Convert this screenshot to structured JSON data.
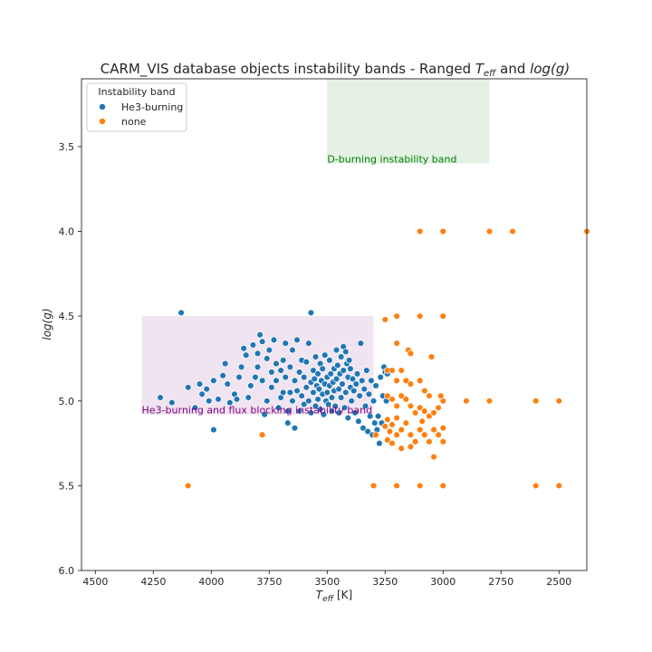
{
  "chart_data": {
    "type": "scatter",
    "title_prefix": "CARM_VIS database objects instability bands - Ranged ",
    "title_teff_main": "T",
    "title_teff_sub": "eff",
    "title_and": " and ",
    "title_logg": "log(g)",
    "xlabel_main": "T",
    "xlabel_sub": "eff",
    "xlabel_unit": " [K]",
    "ylabel": "log(g)",
    "xlim": [
      4560,
      2380
    ],
    "ylim": [
      6.0,
      3.1
    ],
    "x_ticks": [
      4500,
      4250,
      4000,
      3750,
      3500,
      3250,
      3000,
      2750,
      2500
    ],
    "y_ticks": [
      3.5,
      4.0,
      4.5,
      5.0,
      5.5,
      6.0
    ],
    "grid": false,
    "legend": {
      "title": "Instability band",
      "placement": "upper-left",
      "entries": [
        {
          "label": "He3-burning",
          "color": "#1f77b4"
        },
        {
          "label": "none",
          "color": "#ff7f0e"
        }
      ]
    },
    "bands": [
      {
        "label": "D-burning instability band",
        "teff": [
          3500,
          2800
        ],
        "logg": [
          3.1,
          3.6
        ],
        "fill": "#e4f1e4",
        "text_color": "#008000"
      },
      {
        "label": "He3-burning and flux blocking instability band",
        "teff": [
          4300,
          3300
        ],
        "logg": [
          4.5,
          5.08
        ],
        "fill": "#f1e4f1",
        "text_color": "#800080"
      }
    ],
    "series": [
      {
        "name": "He3-burning",
        "color": "#1f77b4",
        "points": [
          [
            4130,
            4.48
          ],
          [
            3570,
            4.48
          ],
          [
            4220,
            4.98
          ],
          [
            4170,
            5.01
          ],
          [
            4100,
            4.92
          ],
          [
            4070,
            5.04
          ],
          [
            4050,
            4.9
          ],
          [
            4040,
            4.96
          ],
          [
            4020,
            4.93
          ],
          [
            4010,
            5.0
          ],
          [
            3990,
            4.88
          ],
          [
            3990,
            5.17
          ],
          [
            3970,
            4.99
          ],
          [
            3950,
            4.85
          ],
          [
            3940,
            4.78
          ],
          [
            3930,
            4.9
          ],
          [
            3920,
            5.01
          ],
          [
            3900,
            4.96
          ],
          [
            3890,
            4.99
          ],
          [
            3880,
            4.86
          ],
          [
            3870,
            4.8
          ],
          [
            3860,
            4.69
          ],
          [
            3850,
            4.73
          ],
          [
            3840,
            4.98
          ],
          [
            3830,
            4.91
          ],
          [
            3820,
            4.67
          ],
          [
            3810,
            4.86
          ],
          [
            3800,
            4.8
          ],
          [
            3800,
            4.72
          ],
          [
            3790,
            4.61
          ],
          [
            3780,
            4.65
          ],
          [
            3780,
            4.88
          ],
          [
            3770,
            5.08
          ],
          [
            3760,
            5.0
          ],
          [
            3760,
            4.75
          ],
          [
            3750,
            4.7
          ],
          [
            3740,
            4.83
          ],
          [
            3740,
            4.92
          ],
          [
            3730,
            4.64
          ],
          [
            3720,
            4.78
          ],
          [
            3720,
            4.88
          ],
          [
            3710,
            5.04
          ],
          [
            3700,
            4.98
          ],
          [
            3700,
            4.82
          ],
          [
            3690,
            4.95
          ],
          [
            3690,
            4.76
          ],
          [
            3680,
            4.66
          ],
          [
            3680,
            4.86
          ],
          [
            3670,
            5.06
          ],
          [
            3670,
            5.13
          ],
          [
            3660,
            4.8
          ],
          [
            3660,
            4.95
          ],
          [
            3650,
            4.7
          ],
          [
            3650,
            5.0
          ],
          [
            3640,
            4.88
          ],
          [
            3640,
            5.16
          ],
          [
            3630,
            4.64
          ],
          [
            3630,
            4.94
          ],
          [
            3620,
            4.83
          ],
          [
            3620,
            5.06
          ],
          [
            3610,
            4.76
          ],
          [
            3610,
            4.97
          ],
          [
            3600,
            4.86
          ],
          [
            3600,
            5.02
          ],
          [
            3590,
            4.92
          ],
          [
            3590,
            4.77
          ],
          [
            3580,
            4.66
          ],
          [
            3580,
            5.0
          ],
          [
            3570,
            4.89
          ],
          [
            3570,
            5.07
          ],
          [
            3560,
            4.82
          ],
          [
            3560,
            4.95
          ],
          [
            3555,
            4.87
          ],
          [
            3550,
            4.74
          ],
          [
            3550,
            5.03
          ],
          [
            3545,
            4.91
          ],
          [
            3540,
            4.84
          ],
          [
            3540,
            4.99
          ],
          [
            3535,
            4.93
          ],
          [
            3530,
            4.78
          ],
          [
            3530,
            5.05
          ],
          [
            3525,
            4.88
          ],
          [
            3520,
            4.96
          ],
          [
            3520,
            4.81
          ],
          [
            3515,
            5.08
          ],
          [
            3510,
            4.9
          ],
          [
            3510,
            4.73
          ],
          [
            3505,
            5.0
          ],
          [
            3500,
            4.86
          ],
          [
            3500,
            4.95
          ],
          [
            3495,
            5.02
          ],
          [
            3490,
            4.76
          ],
          [
            3490,
            4.91
          ],
          [
            3485,
            4.84
          ],
          [
            3480,
            5.06
          ],
          [
            3480,
            4.98
          ],
          [
            3475,
            4.89
          ],
          [
            3470,
            4.81
          ],
          [
            3470,
            4.94
          ],
          [
            3465,
            5.03
          ],
          [
            3460,
            4.7
          ],
          [
            3460,
            4.87
          ],
          [
            3455,
            4.79
          ],
          [
            3450,
            4.93
          ],
          [
            3450,
            5.07
          ],
          [
            3445,
            4.84
          ],
          [
            3440,
            4.74
          ],
          [
            3440,
            4.98
          ],
          [
            3435,
            4.9
          ],
          [
            3430,
            4.68
          ],
          [
            3430,
            4.82
          ],
          [
            3425,
            5.04
          ],
          [
            3420,
            4.71
          ],
          [
            3420,
            4.95
          ],
          [
            3415,
            4.78
          ],
          [
            3410,
            4.86
          ],
          [
            3410,
            5.1
          ],
          [
            3405,
            4.76
          ],
          [
            3400,
            4.92
          ],
          [
            3400,
            4.81
          ],
          [
            3395,
            5.0
          ],
          [
            3390,
            4.87
          ],
          [
            3385,
            4.94
          ],
          [
            3380,
            5.07
          ],
          [
            3375,
            4.9
          ],
          [
            3370,
            4.84
          ],
          [
            3365,
            5.12
          ],
          [
            3360,
            4.97
          ],
          [
            3355,
            4.66
          ],
          [
            3350,
            4.88
          ],
          [
            3345,
            5.16
          ],
          [
            3340,
            4.93
          ],
          [
            3335,
            5.03
          ],
          [
            3330,
            4.82
          ],
          [
            3325,
            5.18
          ],
          [
            3320,
            4.96
          ],
          [
            3315,
            5.09
          ],
          [
            3310,
            4.88
          ],
          [
            3305,
            5.2
          ],
          [
            3300,
            5.0
          ],
          [
            3295,
            5.13
          ],
          [
            3290,
            4.91
          ],
          [
            3285,
            5.17
          ],
          [
            3280,
            5.09
          ],
          [
            3275,
            5.25
          ],
          [
            3270,
            4.86
          ],
          [
            3265,
            5.13
          ],
          [
            3260,
            4.97
          ],
          [
            3255,
            4.8
          ],
          [
            3250,
            4.83
          ],
          [
            3245,
            5.0
          ],
          [
            3240,
            4.84
          ]
        ]
      },
      {
        "name": "none",
        "color": "#ff7f0e",
        "points": [
          [
            3100,
            4.0
          ],
          [
            3000,
            4.0
          ],
          [
            2800,
            4.0
          ],
          [
            2700,
            4.0
          ],
          [
            2380,
            4.0
          ],
          [
            3250,
            4.52
          ],
          [
            3200,
            4.5
          ],
          [
            3100,
            4.5
          ],
          [
            3000,
            4.5
          ],
          [
            3200,
            4.66
          ],
          [
            3150,
            4.7
          ],
          [
            3050,
            4.74
          ],
          [
            3140,
            4.72
          ],
          [
            3240,
            4.82
          ],
          [
            3220,
            4.82
          ],
          [
            3200,
            4.88
          ],
          [
            3180,
            4.82
          ],
          [
            3160,
            4.88
          ],
          [
            3140,
            4.9
          ],
          [
            3100,
            4.88
          ],
          [
            3080,
            4.94
          ],
          [
            3060,
            4.97
          ],
          [
            3240,
            4.97
          ],
          [
            3220,
            4.99
          ],
          [
            3200,
            5.03
          ],
          [
            3180,
            4.97
          ],
          [
            3160,
            4.99
          ],
          [
            3140,
            5.03
          ],
          [
            3120,
            5.07
          ],
          [
            3100,
            5.04
          ],
          [
            3080,
            5.06
          ],
          [
            3060,
            5.09
          ],
          [
            3040,
            5.07
          ],
          [
            3020,
            5.04
          ],
          [
            3000,
            5.0
          ],
          [
            3240,
            5.11
          ],
          [
            3220,
            5.14
          ],
          [
            3200,
            5.1
          ],
          [
            3180,
            5.17
          ],
          [
            3160,
            5.13
          ],
          [
            3140,
            5.2
          ],
          [
            3120,
            5.24
          ],
          [
            3100,
            5.17
          ],
          [
            3080,
            5.2
          ],
          [
            3060,
            5.24
          ],
          [
            3040,
            5.17
          ],
          [
            3020,
            5.2
          ],
          [
            3000,
            5.24
          ],
          [
            3240,
            5.23
          ],
          [
            3220,
            5.25
          ],
          [
            3200,
            5.2
          ],
          [
            3180,
            5.28
          ],
          [
            3140,
            5.27
          ],
          [
            3040,
            5.33
          ],
          [
            3000,
            5.16
          ],
          [
            3250,
            5.15
          ],
          [
            3230,
            5.18
          ],
          [
            3780,
            5.2
          ],
          [
            3290,
            5.2
          ],
          [
            2900,
            5.0
          ],
          [
            2800,
            5.0
          ],
          [
            2600,
            5.0
          ],
          [
            2500,
            5.0
          ],
          [
            4100,
            5.5
          ],
          [
            3300,
            5.5
          ],
          [
            3200,
            5.5
          ],
          [
            3100,
            5.5
          ],
          [
            3000,
            5.5
          ],
          [
            2600,
            5.5
          ],
          [
            2500,
            5.5
          ],
          [
            3010,
            4.97
          ],
          [
            3090,
            5.12
          ]
        ]
      }
    ]
  }
}
